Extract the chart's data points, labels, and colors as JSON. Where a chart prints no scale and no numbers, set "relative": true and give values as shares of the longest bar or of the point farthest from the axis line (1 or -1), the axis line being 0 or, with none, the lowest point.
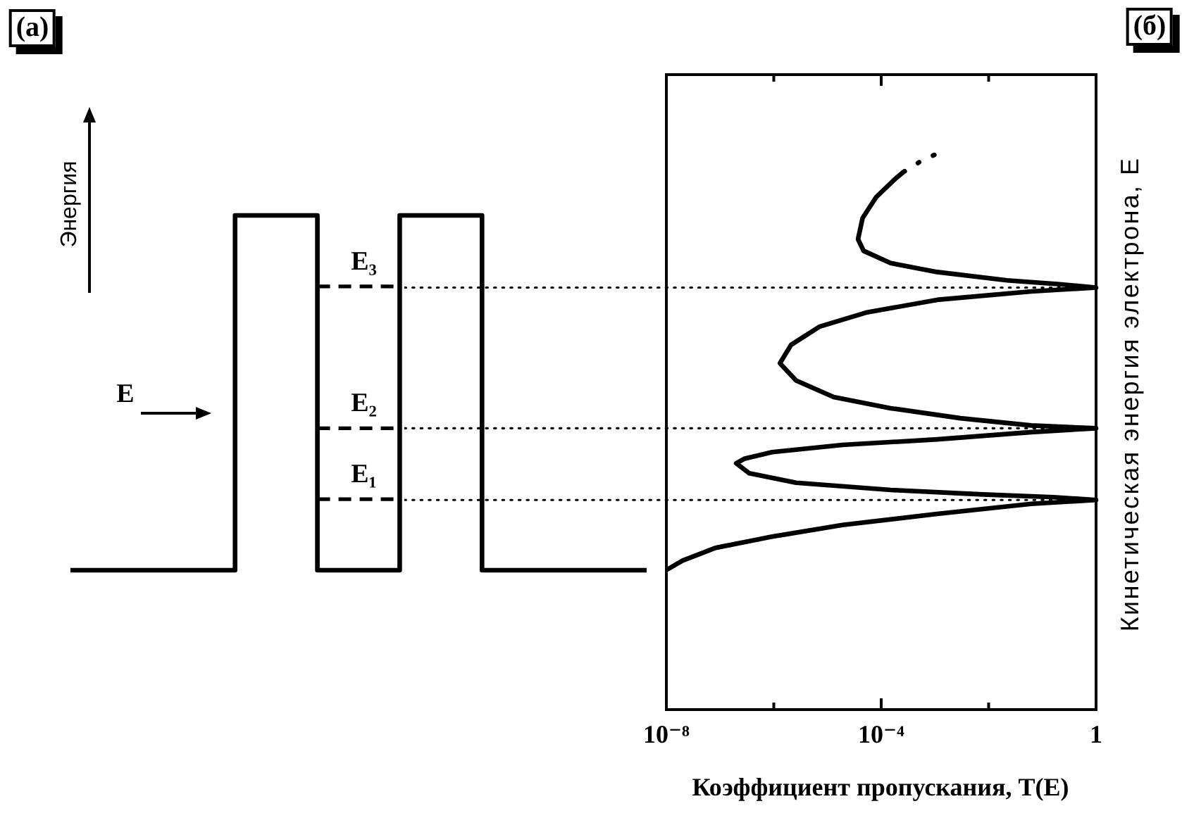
{
  "chart_data": [
    {
      "type": "step",
      "ylabel": "Энергия",
      "relative": true,
      "tick_labels": false,
      "categories": [
        null,
        null,
        null,
        null,
        null,
        null,
        null,
        null
      ],
      "series": [
        {
          "color": "#000000",
          "values": [
            0,
            0,
            1,
            0,
            1,
            0,
            0,
            0
          ]
        },
        {
          "type": "line",
          "name": "E₁",
          "color": "#000000",
          "line_style": "dashed",
          "values": [
            null,
            null,
            null,
            0.2,
            0.2,
            null,
            null,
            null
          ]
        },
        {
          "type": "line",
          "name": "E₂",
          "color": "#000000",
          "line_style": "dashed",
          "values": [
            null,
            null,
            null,
            0.4,
            0.4,
            null,
            null,
            null
          ]
        },
        {
          "type": "line",
          "name": "E₃",
          "color": "#000000",
          "line_style": "dashed",
          "values": [
            null,
            null,
            null,
            0.8,
            0.8,
            null,
            null,
            null
          ]
        }
      ],
      "annotations": [
        "(а)",
        "E"
      ]
    },
    {
      "type": "line",
      "xlabel": "Коэффициент пропускания, T(E)",
      "ylabel": "Кинетическая энергия электрона, E",
      "relative": true,
      "log": "x",
      "tick_labels": "x",
      "xlim": [
        1e-08,
        1
      ],
      "xticks": [
        {
          "value": 1e-08,
          "label": "10⁻⁸"
        },
        {
          "value": 1e-06,
          "label": null
        },
        {
          "value": 0.0001,
          "label": "10⁻⁴"
        },
        {
          "value": 0.01,
          "label": null
        },
        1
      ],
      "series": [
        {
          "color": "#000000",
          "x": [
            1e-08,
            2e-08,
            8.3e-08,
            9.3e-07,
            1.9e-05,
            0.0011,
            0.062,
            1,
            0.16,
            0.0079,
            0.00015,
            2.6e-06,
            3.5e-07,
            2e-07,
            2.8e-07,
            9.3e-07,
            1.9e-05,
            0.0011,
            0.062,
            1,
            0.062,
            0.003,
            0.00015,
            1.3e-05,
            2.6e-06,
            1.3e-06,
            2.1e-06,
            7.2e-06,
            5.2e-05,
            0.0011,
            0.062,
            1,
            0.21,
            0.022,
            0.0011,
            0.00015,
            4.7e-05,
            3.7e-05,
            4.5e-05,
            8.1e-05,
            0.00018,
            0.00026
          ],
          "values": [
            0.251,
            0.268,
            0.291,
            0.311,
            0.332,
            0.352,
            0.37,
            0.377,
            0.382,
            0.387,
            0.395,
            0.408,
            0.425,
            0.443,
            0.451,
            0.463,
            0.476,
            0.486,
            0.499,
            0.506,
            0.511,
            0.524,
            0.542,
            0.562,
            0.592,
            0.623,
            0.656,
            0.689,
            0.714,
            0.737,
            0.752,
            0.759,
            0.765,
            0.772,
            0.787,
            0.803,
            0.825,
            0.846,
            0.884,
            0.922,
            0.954,
            0.967
          ]
        },
        {
          "color": "#000000",
          "line_style": "dotted",
          "x": [
            0.00026,
            0.00052,
            0.0011
          ],
          "values": [
            0.967,
            0.985,
            1
          ]
        }
      ],
      "ref_lines": [
        {
          "axis": "y",
          "value": 0.377,
          "line_style": "dotted",
          "color": "#000000"
        },
        {
          "axis": "y",
          "value": 0.506,
          "line_style": "dotted",
          "color": "#000000"
        },
        {
          "axis": "y",
          "value": 0.759,
          "line_style": "dotted",
          "color": "#000000"
        }
      ],
      "annotations": [
        "(б)"
      ]
    }
  ]
}
